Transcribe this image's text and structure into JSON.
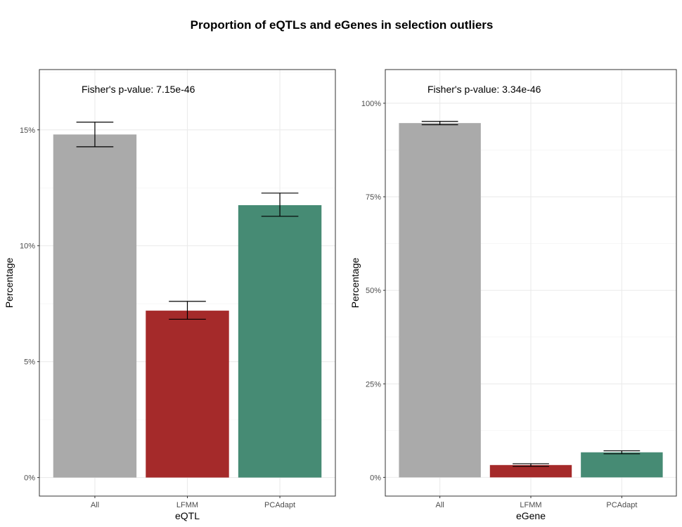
{
  "title": "Proportion of eQTLs and eGenes in selection outliers",
  "chart_data": [
    {
      "type": "bar",
      "categories": [
        "All",
        "LFMM",
        "PCAdapt"
      ],
      "values": [
        14.8,
        7.2,
        11.75
      ],
      "error_low": [
        14.27,
        6.83,
        11.27
      ],
      "error_high": [
        15.33,
        7.6,
        12.27
      ],
      "colors": [
        "#aaaaaa",
        "#a52a2a",
        "#468b74"
      ],
      "xlabel": "eQTL",
      "ylabel": "Percentage",
      "ylim": [
        -0.8,
        17.6
      ],
      "yticks": [
        0,
        5,
        10,
        15
      ],
      "ytick_labels": [
        "0%",
        "5%",
        "10%",
        "15%"
      ],
      "annotation": "Fisher's p-value: 7.15e-46",
      "grid": true
    },
    {
      "type": "bar",
      "categories": [
        "All",
        "LFMM",
        "PCAdapt"
      ],
      "values": [
        94.7,
        3.3,
        6.7
      ],
      "error_low": [
        94.25,
        2.95,
        6.3
      ],
      "error_high": [
        95.15,
        3.65,
        7.1
      ],
      "colors": [
        "#aaaaaa",
        "#a52a2a",
        "#468b74"
      ],
      "xlabel": "eGene",
      "ylabel": "Percentage",
      "ylim": [
        -5,
        109
      ],
      "yticks": [
        0,
        25,
        50,
        75,
        100
      ],
      "ytick_labels": [
        "0%",
        "25%",
        "50%",
        "75%",
        "100%"
      ],
      "annotation": "Fisher's p-value: 3.34e-46",
      "grid": true
    }
  ]
}
